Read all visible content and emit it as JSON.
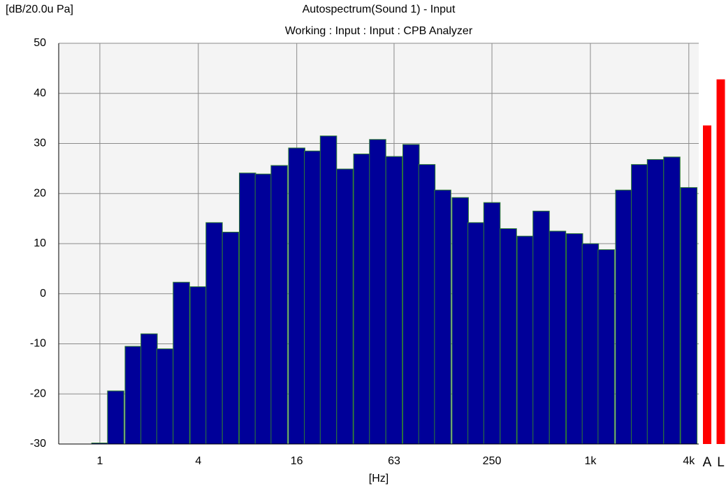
{
  "chart_data": {
    "type": "bar",
    "title": "Autospectrum(Sound 1) - Input",
    "subtitle": "Working : Input : Input : CPB Analyzer",
    "y_label": "[dB/20.0u Pa]",
    "x_label": "[Hz]",
    "x_scale": "log",
    "x": [
      1,
      1.25,
      1.6,
      2,
      2.5,
      3.15,
      4,
      5,
      6.3,
      8,
      10,
      12.5,
      16,
      20,
      25,
      31.5,
      40,
      50,
      63,
      80,
      100,
      125,
      160,
      200,
      250,
      315,
      400,
      500,
      630,
      800,
      1000,
      1250,
      1600,
      2000,
      2500,
      3150,
      4000
    ],
    "values": [
      -29.8,
      -19.4,
      -10.5,
      -8,
      -11,
      2.3,
      1.4,
      14.2,
      12.3,
      24.1,
      23.9,
      25.6,
      29.1,
      28.5,
      31.5,
      24.9,
      27.9,
      30.8,
      27.4,
      29.8,
      25.8,
      20.7,
      19.2,
      14.2,
      18.2,
      13,
      11.5,
      16.5,
      12.5,
      12,
      10,
      8.8,
      20.7,
      25.8,
      26.8,
      27.3,
      21.2
    ],
    "color": "#000099",
    "edge_color": "#2e7d32",
    "xlim": [
      0.56,
      4600
    ],
    "xticks": [
      1,
      4,
      16,
      63,
      250,
      {
        "value": 1000,
        "label": "1k"
      },
      {
        "value": 4000,
        "label": "4k"
      }
    ],
    "ylim": [
      -30,
      50
    ],
    "yticks": [
      50,
      40,
      30,
      20,
      10,
      0,
      -10,
      -20,
      -30
    ],
    "grid": true,
    "overall": {
      "categories": [
        "A",
        "L"
      ],
      "values": [
        33.6,
        42.8
      ],
      "color": "#ff0000"
    }
  }
}
